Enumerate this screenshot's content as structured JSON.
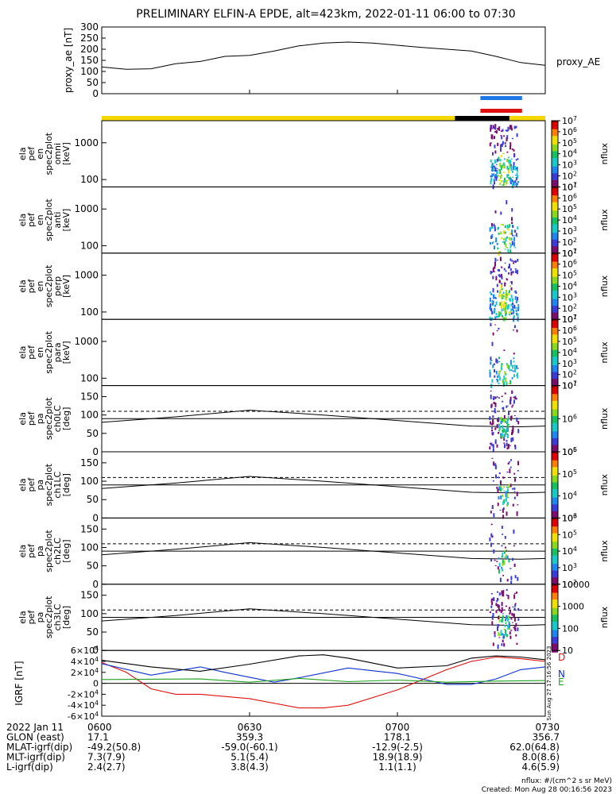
{
  "title": "PRELIMINARY ELFIN-A EPDE, alt=423km, 2022-01-11 06:00 to 07:30",
  "colors": {
    "axis": "#000000",
    "sci_zone_bar": "#f5d800",
    "sci_active_bar": "#000000",
    "marker_blue": "#1e78e6",
    "marker_red": "#e01010",
    "bx_line": "#e01010",
    "by_line": "#1030d0",
    "bz_line": "#20a020",
    "bmag_line": "#000000"
  },
  "colorbar_palette": [
    "#7a0d6e",
    "#3b3bd8",
    "#1f86f0",
    "#19c8c8",
    "#14c060",
    "#8ad81c",
    "#f0e000",
    "#ff8000",
    "#e00000",
    "#8a0000"
  ],
  "panels": {
    "proxy_ae": {
      "ylabel": "proxy_ae [nT]",
      "side_label": "proxy_AE",
      "yticks": [
        "0",
        "50",
        "100",
        "150",
        "200",
        "250",
        "300"
      ]
    },
    "spec_en": [
      {
        "ylabel": [
          "ela",
          "pef",
          "en",
          "spec2plot",
          "omni",
          "[keV]"
        ]
      },
      {
        "ylabel": [
          "ela",
          "pef",
          "en",
          "spec2plot",
          "anti",
          "[keV]"
        ]
      },
      {
        "ylabel": [
          "ela",
          "pef",
          "en",
          "spec2plot",
          "perp",
          "[keV]"
        ]
      },
      {
        "ylabel": [
          "ela",
          "pef",
          "en",
          "spec2plot",
          "para",
          "[keV]"
        ]
      }
    ],
    "spec_en_yticks": [
      "100",
      "1000"
    ],
    "spec_en_cbar_ticks": [
      "10^1",
      "10^2",
      "10^3",
      "10^4",
      "10^5",
      "10^6",
      "10^7"
    ],
    "spec_pa": [
      {
        "ylabel": [
          "ela",
          "pef",
          "pa",
          "spec2plot",
          "ch0LC",
          "[deg]"
        ],
        "cbar_ticks": [
          "10^5",
          "10^6",
          "10^7"
        ]
      },
      {
        "ylabel": [
          "ela",
          "pef",
          "pa",
          "spec2plot",
          "ch1LC",
          "[deg]"
        ],
        "cbar_ticks": [
          "10^3",
          "10^4",
          "10^5",
          "10^6"
        ]
      },
      {
        "ylabel": [
          "ela",
          "pef",
          "pa",
          "spec2plot",
          "ch2LC",
          "[deg]"
        ],
        "cbar_ticks": [
          "10^2",
          "10^3",
          "10^4",
          "10^5",
          "10^6"
        ]
      },
      {
        "ylabel": [
          "ela",
          "pef",
          "pa",
          "spec2plot",
          "ch3LC",
          "[deg]"
        ],
        "cbar_ticks": [
          "10",
          "100",
          "1000",
          "10000"
        ]
      }
    ],
    "spec_pa_yticks": [
      "0",
      "50",
      "100",
      "150"
    ],
    "cbar_label": "nflux",
    "igrf": {
      "ylabel": "IGRF [nT]",
      "yticks": [
        "-6×10^4",
        "-4×10^4",
        "-2×10^4",
        "0",
        "2×10^4",
        "4×10^4",
        "6×10^4"
      ],
      "legend": [
        "D",
        "N",
        "E"
      ],
      "stamp": "Sun Aug 27 17:16:56 2023"
    }
  },
  "footer": {
    "rows": [
      {
        "label": "2022 Jan 11",
        "values": [
          "0600",
          "0630",
          "0700",
          "0730"
        ]
      },
      {
        "label": "GLON (east)",
        "values": [
          "17.1",
          "359.3",
          "178.1",
          "356.7"
        ]
      },
      {
        "label": "MLAT-igrf(dip)",
        "values": [
          "-49.2(50.8)",
          "-59.0(-60.1)",
          "-12.9(-2.5)",
          "62.0(64.8)"
        ]
      },
      {
        "label": "MLT-igrf(dip)",
        "values": [
          "7.3(7.9)",
          "5.1(5.4)",
          "18.9(18.9)",
          "8.0(8.6)"
        ]
      },
      {
        "label": "L-igrf(dip)",
        "values": [
          "2.4(2.7)",
          "3.8(4.3)",
          "1.1(1.1)",
          "4.6(5.9)"
        ]
      }
    ],
    "units_note": "nflux: #/(cm^2 s sr MeV)",
    "created": "Created: Mon Aug 28 00:16:56 2023"
  },
  "chart_data": {
    "type": "line",
    "title": "PRELIMINARY ELFIN-A EPDE, alt=423km, 2022-01-11 06:00 to 07:30",
    "x_range_minutes": [
      0,
      90
    ],
    "proxy_ae": {
      "ylim": [
        0,
        300
      ],
      "x": [
        0,
        5,
        10,
        15,
        20,
        25,
        30,
        35,
        40,
        45,
        50,
        55,
        60,
        65,
        70,
        75,
        80,
        85,
        90
      ],
      "values": [
        120,
        110,
        112,
        135,
        145,
        168,
        172,
        192,
        215,
        228,
        232,
        228,
        218,
        208,
        200,
        192,
        168,
        140,
        128
      ]
    },
    "activity_window_minutes": [
      72,
      84
    ],
    "pa_ref_lines_deg": [
      90,
      110
    ],
    "pa_losscone": {
      "x": [
        0,
        15,
        30,
        45,
        60,
        75,
        85,
        90
      ],
      "values": [
        80,
        95,
        113,
        100,
        85,
        70,
        68,
        70
      ]
    },
    "igrf": {
      "ylim": [
        -60000,
        60000
      ],
      "series": [
        {
          "name": "D",
          "x": [
            0,
            5,
            10,
            15,
            20,
            30,
            40,
            45,
            50,
            60,
            70,
            75,
            80,
            85,
            90
          ],
          "values": [
            38000,
            20000,
            -10000,
            -20000,
            -20000,
            -28000,
            -45000,
            -45000,
            -40000,
            -12000,
            25000,
            40000,
            48000,
            45000,
            40000
          ]
        },
        {
          "name": "N",
          "x": [
            0,
            10,
            20,
            25,
            35,
            40,
            50,
            60,
            70,
            75,
            80,
            85,
            90
          ],
          "values": [
            36000,
            15000,
            30000,
            20000,
            2000,
            10000,
            28000,
            18000,
            -2000,
            -2000,
            8000,
            25000,
            30000
          ]
        },
        {
          "name": "E",
          "x": [
            0,
            20,
            30,
            40,
            50,
            60,
            70,
            80,
            90
          ],
          "values": [
            7000,
            8000,
            2000,
            9000,
            3000,
            6000,
            2000,
            4000,
            5000
          ]
        },
        {
          "name": "|B|",
          "x": [
            0,
            10,
            20,
            30,
            40,
            45,
            50,
            60,
            70,
            75,
            80,
            85,
            90
          ],
          "values": [
            42000,
            30000,
            22000,
            35000,
            50000,
            52000,
            46000,
            28000,
            32000,
            46000,
            50000,
            48000,
            43000
          ]
        }
      ]
    }
  }
}
